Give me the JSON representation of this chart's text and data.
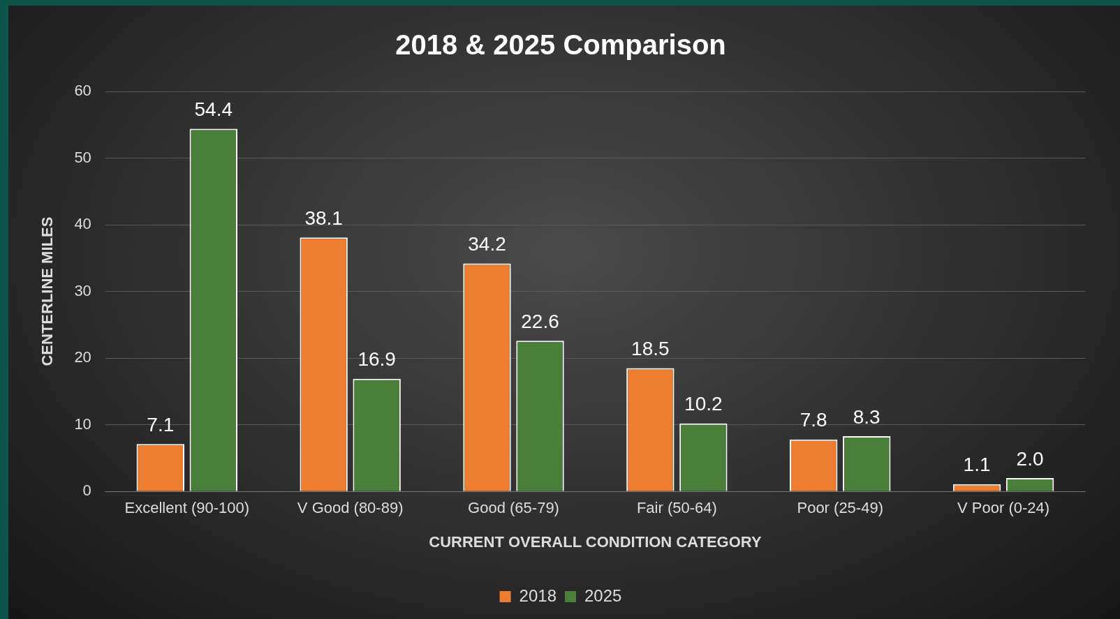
{
  "chart_data": {
    "type": "bar",
    "title": "2018 & 2025 Comparison",
    "xlabel": "CURRENT OVERALL CONDITION CATEGORY",
    "ylabel": "CENTERLINE MILES",
    "categories": [
      "Excellent (90-100)",
      "V Good (80-89)",
      "Good (65-79)",
      "Fair (50-64)",
      "Poor (25-49)",
      "V Poor (0-24)"
    ],
    "series": [
      {
        "name": "2018",
        "color": "#ed7d31",
        "values": [
          7.1,
          38.1,
          34.2,
          18.5,
          7.8,
          1.1
        ]
      },
      {
        "name": "2025",
        "color": "#4a7f3a",
        "values": [
          54.4,
          16.9,
          22.6,
          10.2,
          8.3,
          2.0
        ]
      }
    ],
    "value_labels": [
      [
        "7.1",
        "38.1",
        "34.2",
        "18.5",
        "7.8",
        "1.1"
      ],
      [
        "54.4",
        "16.9",
        "22.6",
        "10.2",
        "8.3",
        "2.0"
      ]
    ],
    "ylim": [
      0,
      60
    ],
    "yticks": [
      0,
      10,
      20,
      30,
      40,
      50,
      60
    ],
    "grid": "y",
    "legend": "bottom"
  }
}
